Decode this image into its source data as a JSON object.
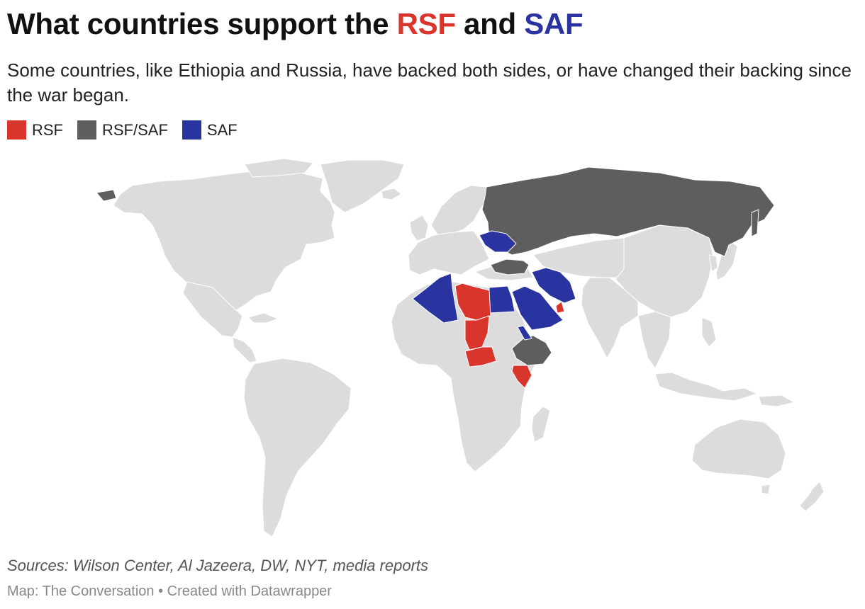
{
  "title": {
    "prefix": "What countries support the ",
    "rsf": "RSF",
    "middle": " and ",
    "saf": "SAF"
  },
  "subtitle": "Some countries, like Ethiopia and Russia, have backed both sides, or have changed their backing since the war began.",
  "legend": [
    {
      "label": "RSF",
      "color": "#d9352c"
    },
    {
      "label": "RSF/SAF",
      "color": "#5e5e5e"
    },
    {
      "label": "SAF",
      "color": "#2a34a0"
    }
  ],
  "colors": {
    "land": "#dcdcdc",
    "border": "#ffffff",
    "rsf": "#d9352c",
    "both": "#5e5e5e",
    "saf": "#2a34a0"
  },
  "source": "Sources: Wilson Center, Al Jazeera, DW, NYT, media reports",
  "credit": "Map: The Conversation • Created with Datawrapper"
}
